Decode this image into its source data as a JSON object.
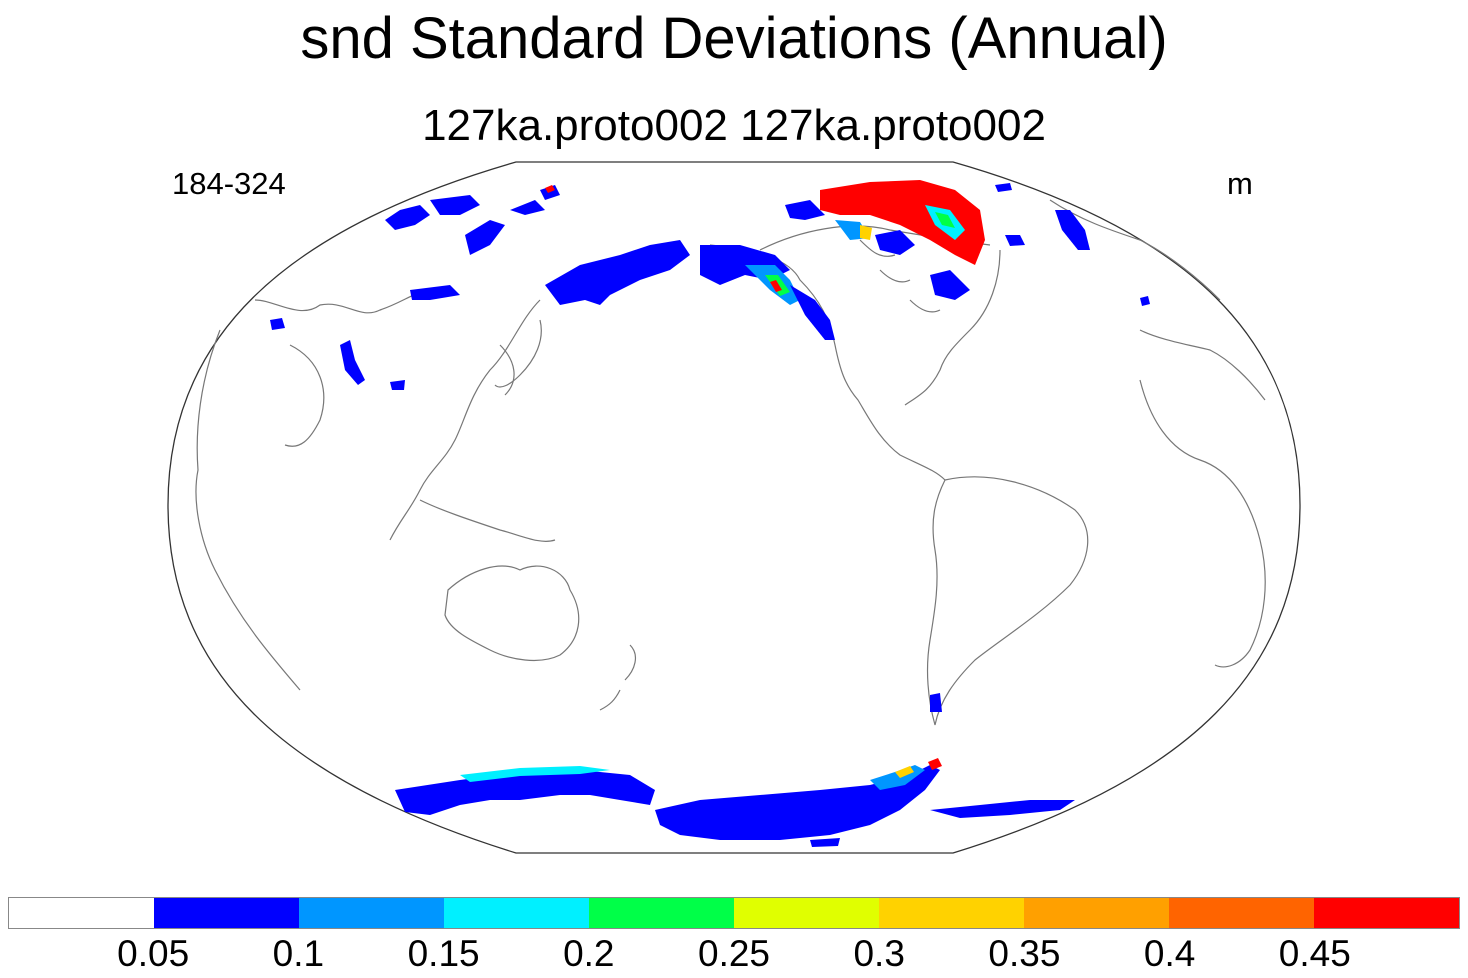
{
  "title": "snd Standard Deviations (Annual)",
  "subtitle": "127ka.proto002  127ka.proto002",
  "left_label": "184-324",
  "right_label": "m",
  "colorbar": {
    "colors": [
      "#ffffff",
      "#0000ff",
      "#0096ff",
      "#00f0ff",
      "#00ff48",
      "#e0ff00",
      "#ffd200",
      "#ffa000",
      "#ff6400",
      "#ff0000"
    ],
    "labels": [
      "0.05",
      "0.1",
      "0.15",
      "0.2",
      "0.25",
      "0.3",
      "0.35",
      "0.4",
      "0.45"
    ]
  },
  "colors": {
    "coastline": "#777777",
    "frame": "#333333"
  }
}
